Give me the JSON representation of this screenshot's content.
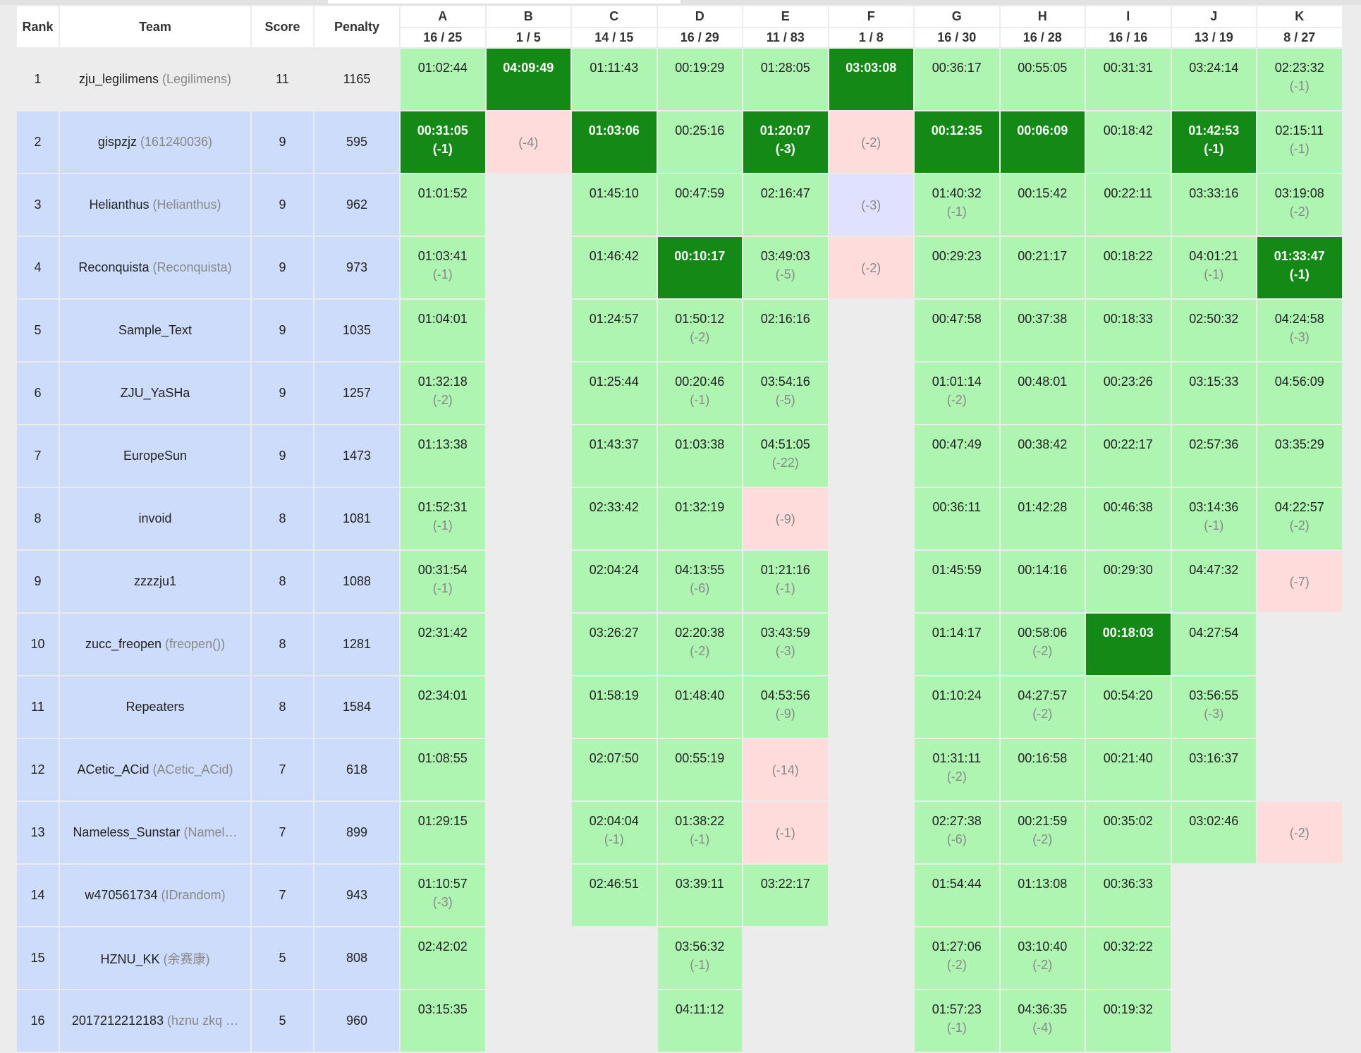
{
  "headers": {
    "rank": "Rank",
    "team": "Team",
    "score": "Score",
    "penalty": "Penalty"
  },
  "colors": {
    "accepted": "#adf5b0",
    "first_blood": "#148a16",
    "wrong": "#ffdcdc",
    "pending": "#e0e1ff",
    "row_highlight": "#cddcfb"
  },
  "problems": [
    {
      "label": "A",
      "stat": "16 / 25"
    },
    {
      "label": "B",
      "stat": "1 / 5"
    },
    {
      "label": "C",
      "stat": "14 / 15"
    },
    {
      "label": "D",
      "stat": "16 / 29"
    },
    {
      "label": "E",
      "stat": "11 / 83"
    },
    {
      "label": "F",
      "stat": "1 / 8"
    },
    {
      "label": "G",
      "stat": "16 / 30"
    },
    {
      "label": "H",
      "stat": "16 / 28"
    },
    {
      "label": "I",
      "stat": "16 / 16"
    },
    {
      "label": "J",
      "stat": "13 / 19"
    },
    {
      "label": "K",
      "stat": "8 / 27"
    }
  ],
  "rows": [
    {
      "rank": "1",
      "name": "zju_legilimens",
      "nick": "(Legilimens)",
      "score": "11",
      "penalty": "1165",
      "cells": [
        [
          "ac",
          "01:02:44",
          ""
        ],
        [
          "fb",
          "04:09:49",
          ""
        ],
        [
          "ac",
          "01:11:43",
          ""
        ],
        [
          "ac",
          "00:19:29",
          ""
        ],
        [
          "ac",
          "01:28:05",
          ""
        ],
        [
          "fb",
          "03:03:08",
          ""
        ],
        [
          "ac",
          "00:36:17",
          ""
        ],
        [
          "ac",
          "00:55:05",
          ""
        ],
        [
          "ac",
          "00:31:31",
          ""
        ],
        [
          "ac",
          "03:24:14",
          ""
        ],
        [
          "ac",
          "02:23:32",
          "(-1)"
        ]
      ]
    },
    {
      "rank": "2",
      "name": "gispzjz",
      "nick": "(161240036)",
      "score": "9",
      "penalty": "595",
      "cells": [
        [
          "fb",
          "00:31:05",
          "(-1)"
        ],
        [
          "wa",
          "",
          "(-4)"
        ],
        [
          "fb",
          "01:03:06",
          ""
        ],
        [
          "ac",
          "00:25:16",
          ""
        ],
        [
          "fb",
          "01:20:07",
          "(-3)"
        ],
        [
          "wa",
          "",
          "(-2)"
        ],
        [
          "fb",
          "00:12:35",
          ""
        ],
        [
          "fb",
          "00:06:09",
          ""
        ],
        [
          "ac",
          "00:18:42",
          ""
        ],
        [
          "fb",
          "01:42:53",
          "(-1)"
        ],
        [
          "ac",
          "02:15:11",
          "(-1)"
        ]
      ]
    },
    {
      "rank": "3",
      "name": "Helianthus",
      "nick": "(Helianthus)",
      "score": "9",
      "penalty": "962",
      "cells": [
        [
          "ac",
          "01:01:52",
          ""
        ],
        [
          "none",
          "",
          ""
        ],
        [
          "ac",
          "01:45:10",
          ""
        ],
        [
          "ac",
          "00:47:59",
          ""
        ],
        [
          "ac",
          "02:16:47",
          ""
        ],
        [
          "pd",
          "",
          "(-3)"
        ],
        [
          "ac",
          "01:40:32",
          "(-1)"
        ],
        [
          "ac",
          "00:15:42",
          ""
        ],
        [
          "ac",
          "00:22:11",
          ""
        ],
        [
          "ac",
          "03:33:16",
          ""
        ],
        [
          "ac",
          "03:19:08",
          "(-2)"
        ]
      ]
    },
    {
      "rank": "4",
      "name": "Reconquista",
      "nick": "(Reconquista)",
      "score": "9",
      "penalty": "973",
      "cells": [
        [
          "ac",
          "01:03:41",
          "(-1)"
        ],
        [
          "none",
          "",
          ""
        ],
        [
          "ac",
          "01:46:42",
          ""
        ],
        [
          "fb",
          "00:10:17",
          ""
        ],
        [
          "ac",
          "03:49:03",
          "(-5)"
        ],
        [
          "wa",
          "",
          "(-2)"
        ],
        [
          "ac",
          "00:29:23",
          ""
        ],
        [
          "ac",
          "00:21:17",
          ""
        ],
        [
          "ac",
          "00:18:22",
          ""
        ],
        [
          "ac",
          "04:01:21",
          "(-1)"
        ],
        [
          "fb",
          "01:33:47",
          "(-1)"
        ]
      ]
    },
    {
      "rank": "5",
      "name": "Sample_Text",
      "nick": "",
      "score": "9",
      "penalty": "1035",
      "cells": [
        [
          "ac",
          "01:04:01",
          ""
        ],
        [
          "none",
          "",
          ""
        ],
        [
          "ac",
          "01:24:57",
          ""
        ],
        [
          "ac",
          "01:50:12",
          "(-2)"
        ],
        [
          "ac",
          "02:16:16",
          ""
        ],
        [
          "none",
          "",
          ""
        ],
        [
          "ac",
          "00:47:58",
          ""
        ],
        [
          "ac",
          "00:37:38",
          ""
        ],
        [
          "ac",
          "00:18:33",
          ""
        ],
        [
          "ac",
          "02:50:32",
          ""
        ],
        [
          "ac",
          "04:24:58",
          "(-3)"
        ]
      ]
    },
    {
      "rank": "6",
      "name": "ZJU_YaSHa",
      "nick": "",
      "score": "9",
      "penalty": "1257",
      "cells": [
        [
          "ac",
          "01:32:18",
          "(-2)"
        ],
        [
          "none",
          "",
          ""
        ],
        [
          "ac",
          "01:25:44",
          ""
        ],
        [
          "ac",
          "00:20:46",
          "(-1)"
        ],
        [
          "ac",
          "03:54:16",
          "(-5)"
        ],
        [
          "none",
          "",
          ""
        ],
        [
          "ac",
          "01:01:14",
          "(-2)"
        ],
        [
          "ac",
          "00:48:01",
          ""
        ],
        [
          "ac",
          "00:23:26",
          ""
        ],
        [
          "ac",
          "03:15:33",
          ""
        ],
        [
          "ac",
          "04:56:09",
          ""
        ]
      ]
    },
    {
      "rank": "7",
      "name": "EuropeSun",
      "nick": "",
      "score": "9",
      "penalty": "1473",
      "cells": [
        [
          "ac",
          "01:13:38",
          ""
        ],
        [
          "none",
          "",
          ""
        ],
        [
          "ac",
          "01:43:37",
          ""
        ],
        [
          "ac",
          "01:03:38",
          ""
        ],
        [
          "ac",
          "04:51:05",
          "(-22)"
        ],
        [
          "none",
          "",
          ""
        ],
        [
          "ac",
          "00:47:49",
          ""
        ],
        [
          "ac",
          "00:38:42",
          ""
        ],
        [
          "ac",
          "00:22:17",
          ""
        ],
        [
          "ac",
          "02:57:36",
          ""
        ],
        [
          "ac",
          "03:35:29",
          ""
        ]
      ]
    },
    {
      "rank": "8",
      "name": "invoid",
      "nick": "",
      "score": "8",
      "penalty": "1081",
      "cells": [
        [
          "ac",
          "01:52:31",
          "(-1)"
        ],
        [
          "none",
          "",
          ""
        ],
        [
          "ac",
          "02:33:42",
          ""
        ],
        [
          "ac",
          "01:32:19",
          ""
        ],
        [
          "wa",
          "",
          "(-9)"
        ],
        [
          "none",
          "",
          ""
        ],
        [
          "ac",
          "00:36:11",
          ""
        ],
        [
          "ac",
          "01:42:28",
          ""
        ],
        [
          "ac",
          "00:46:38",
          ""
        ],
        [
          "ac",
          "03:14:36",
          "(-1)"
        ],
        [
          "ac",
          "04:22:57",
          "(-2)"
        ]
      ]
    },
    {
      "rank": "9",
      "name": "zzzzju1",
      "nick": "",
      "score": "8",
      "penalty": "1088",
      "cells": [
        [
          "ac",
          "00:31:54",
          "(-1)"
        ],
        [
          "none",
          "",
          ""
        ],
        [
          "ac",
          "02:04:24",
          ""
        ],
        [
          "ac",
          "04:13:55",
          "(-6)"
        ],
        [
          "ac",
          "01:21:16",
          "(-1)"
        ],
        [
          "none",
          "",
          ""
        ],
        [
          "ac",
          "01:45:59",
          ""
        ],
        [
          "ac",
          "00:14:16",
          ""
        ],
        [
          "ac",
          "00:29:30",
          ""
        ],
        [
          "ac",
          "04:47:32",
          ""
        ],
        [
          "wa",
          "",
          "(-7)"
        ]
      ]
    },
    {
      "rank": "10",
      "name": "zucc_freopen",
      "nick": "(freopen())",
      "score": "8",
      "penalty": "1281",
      "cells": [
        [
          "ac",
          "02:31:42",
          ""
        ],
        [
          "none",
          "",
          ""
        ],
        [
          "ac",
          "03:26:27",
          ""
        ],
        [
          "ac",
          "02:20:38",
          "(-2)"
        ],
        [
          "ac",
          "03:43:59",
          "(-3)"
        ],
        [
          "none",
          "",
          ""
        ],
        [
          "ac",
          "01:14:17",
          ""
        ],
        [
          "ac",
          "00:58:06",
          "(-2)"
        ],
        [
          "fb",
          "00:18:03",
          ""
        ],
        [
          "ac",
          "04:27:54",
          ""
        ],
        [
          "none",
          "",
          ""
        ]
      ]
    },
    {
      "rank": "11",
      "name": "Repeaters",
      "nick": "",
      "score": "8",
      "penalty": "1584",
      "cells": [
        [
          "ac",
          "02:34:01",
          ""
        ],
        [
          "none",
          "",
          ""
        ],
        [
          "ac",
          "01:58:19",
          ""
        ],
        [
          "ac",
          "01:48:40",
          ""
        ],
        [
          "ac",
          "04:53:56",
          "(-9)"
        ],
        [
          "none",
          "",
          ""
        ],
        [
          "ac",
          "01:10:24",
          ""
        ],
        [
          "ac",
          "04:27:57",
          "(-2)"
        ],
        [
          "ac",
          "00:54:20",
          ""
        ],
        [
          "ac",
          "03:56:55",
          "(-3)"
        ],
        [
          "none",
          "",
          ""
        ]
      ]
    },
    {
      "rank": "12",
      "name": "ACetic_ACid",
      "nick": "(ACetic_ACid)",
      "score": "7",
      "penalty": "618",
      "cells": [
        [
          "ac",
          "01:08:55",
          ""
        ],
        [
          "none",
          "",
          ""
        ],
        [
          "ac",
          "02:07:50",
          ""
        ],
        [
          "ac",
          "00:55:19",
          ""
        ],
        [
          "wa",
          "",
          "(-14)"
        ],
        [
          "none",
          "",
          ""
        ],
        [
          "ac",
          "01:31:11",
          "(-2)"
        ],
        [
          "ac",
          "00:16:58",
          ""
        ],
        [
          "ac",
          "00:21:40",
          ""
        ],
        [
          "ac",
          "03:16:37",
          ""
        ],
        [
          "none",
          "",
          ""
        ]
      ]
    },
    {
      "rank": "13",
      "name": "Nameless_Sunstar",
      "nick": "(Namel…",
      "score": "7",
      "penalty": "899",
      "cells": [
        [
          "ac",
          "01:29:15",
          ""
        ],
        [
          "none",
          "",
          ""
        ],
        [
          "ac",
          "02:04:04",
          "(-1)"
        ],
        [
          "ac",
          "01:38:22",
          "(-1)"
        ],
        [
          "wa",
          "",
          "(-1)"
        ],
        [
          "none",
          "",
          ""
        ],
        [
          "ac",
          "02:27:38",
          "(-6)"
        ],
        [
          "ac",
          "00:21:59",
          "(-2)"
        ],
        [
          "ac",
          "00:35:02",
          ""
        ],
        [
          "ac",
          "03:02:46",
          ""
        ],
        [
          "wa",
          "",
          "(-2)"
        ]
      ]
    },
    {
      "rank": "14",
      "name": "w470561734",
      "nick": "(IDrandom)",
      "score": "7",
      "penalty": "943",
      "cells": [
        [
          "ac",
          "01:10:57",
          "(-3)"
        ],
        [
          "none",
          "",
          ""
        ],
        [
          "ac",
          "02:46:51",
          ""
        ],
        [
          "ac",
          "03:39:11",
          ""
        ],
        [
          "ac",
          "03:22:17",
          ""
        ],
        [
          "none",
          "",
          ""
        ],
        [
          "ac",
          "01:54:44",
          ""
        ],
        [
          "ac",
          "01:13:08",
          ""
        ],
        [
          "ac",
          "00:36:33",
          ""
        ],
        [
          "none",
          "",
          ""
        ],
        [
          "none",
          "",
          ""
        ]
      ]
    },
    {
      "rank": "15",
      "name": "HZNU_KK",
      "nick": "(余赛康)",
      "score": "5",
      "penalty": "808",
      "cells": [
        [
          "ac",
          "02:42:02",
          ""
        ],
        [
          "none",
          "",
          ""
        ],
        [
          "none",
          "",
          ""
        ],
        [
          "ac",
          "03:56:32",
          "(-1)"
        ],
        [
          "none",
          "",
          ""
        ],
        [
          "none",
          "",
          ""
        ],
        [
          "ac",
          "01:27:06",
          "(-2)"
        ],
        [
          "ac",
          "03:10:40",
          "(-2)"
        ],
        [
          "ac",
          "00:32:22",
          ""
        ],
        [
          "none",
          "",
          ""
        ],
        [
          "none",
          "",
          ""
        ]
      ]
    },
    {
      "rank": "16",
      "name": "2017212212183",
      "nick": "(hznu zkq …",
      "score": "5",
      "penalty": "960",
      "cells": [
        [
          "ac",
          "03:15:35",
          ""
        ],
        [
          "none",
          "",
          ""
        ],
        [
          "none",
          "",
          ""
        ],
        [
          "ac",
          "04:11:12",
          ""
        ],
        [
          "none",
          "",
          ""
        ],
        [
          "none",
          "",
          ""
        ],
        [
          "ac",
          "01:57:23",
          "(-1)"
        ],
        [
          "ac",
          "04:36:35",
          "(-4)"
        ],
        [
          "ac",
          "00:19:32",
          ""
        ],
        [
          "none",
          "",
          ""
        ],
        [
          "none",
          "",
          ""
        ]
      ]
    }
  ]
}
